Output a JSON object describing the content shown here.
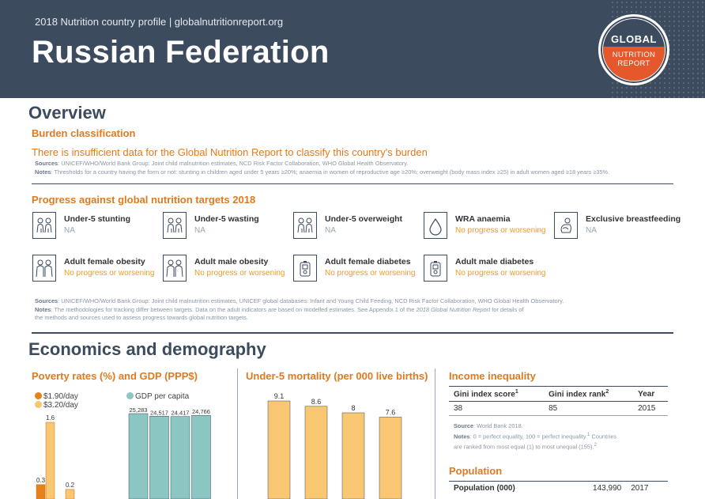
{
  "header": {
    "subtitle": "2018 Nutrition country profile  |  globalnutritionreport.org",
    "title": "Russian Federation",
    "logo": {
      "top": "GLOBAL",
      "line1": "NUTRITION",
      "line2": "REPORT"
    }
  },
  "overview": {
    "heading": "Overview",
    "burden_heading": "Burden classification",
    "burden_text": "There is insufficient data for the Global Nutrition Report to classify this country's burden",
    "burden_sources_label": "Sources",
    "burden_sources": ": UNICEF/WHO/World Bank Group: Joint child malnutrition estimates, NCD Risk Factor Collaboration, WHO Global Health Observatory.",
    "burden_notes_label": "Notes",
    "burden_notes": ": Thresholds for a country having the form or not: stunting in children aged under 5 years ≥20%; anaemia in women of reproductive age ≥20%; overweight (body mass index ≥25) in adult women aged ≥18 years ≥35%.",
    "progress_heading": "Progress against global nutrition targets 2018",
    "targets": [
      {
        "name": "Under-5 stunting",
        "status": "NA",
        "icon": "children-icon",
        "state": "na"
      },
      {
        "name": "Under-5 wasting",
        "status": "NA",
        "icon": "children-icon",
        "state": "na"
      },
      {
        "name": "Under-5 overweight",
        "status": "NA",
        "icon": "children-icon",
        "state": "na"
      },
      {
        "name": "WRA anaemia",
        "status": "No progress or worsening",
        "icon": "blood-drop-icon",
        "state": "bad"
      },
      {
        "name": "Exclusive breastfeeding",
        "status": "NA",
        "icon": "breastfeeding-icon",
        "state": "na"
      },
      {
        "name": "Adult female obesity",
        "status": "No progress or worsening",
        "icon": "adults-icon",
        "state": "bad"
      },
      {
        "name": "Adult male obesity",
        "status": "No progress or worsening",
        "icon": "adults-icon",
        "state": "bad"
      },
      {
        "name": "Adult female diabetes",
        "status": "No progress or worsening",
        "icon": "glucose-meter-icon",
        "state": "bad"
      },
      {
        "name": "Adult male diabetes",
        "status": "No progress or worsening",
        "icon": "glucose-meter-icon",
        "state": "bad"
      }
    ],
    "progress_sources_label": "Sources",
    "progress_sources": ": UNICEF/WHO/World Bank Group: Joint child malnutrition estimates, UNICEF global databases: Infant and Young Child Feeding, NCD Risk Factor Collaboration, WHO Global Health Observatory.",
    "progress_notes_label": "Notes",
    "progress_notes_1": ": The methodologies for tracking differ between targets. Data on the adult indicators are based on modelled estimates. See Appendix 1 of the ",
    "progress_notes_report": "2018 Global Nutrition Report",
    "progress_notes_2": " for details of",
    "progress_notes_3": "the methods and sources used to assess progress towards global nutrition targets."
  },
  "economics": {
    "heading": "Economics and demography",
    "poverty_heading": "Poverty rates (%) and GDP (PPP$)",
    "mortality_heading": "Under-5 mortality (per 000 live births)",
    "inequality_heading": "Income inequality",
    "gini_headers": [
      "Gini index score",
      "Gini index rank",
      "Year"
    ],
    "gini_sups": [
      "1",
      "2",
      ""
    ],
    "gini_values": [
      "38",
      "85",
      "2015"
    ],
    "gini_source_label": "Source",
    "gini_source": ": World Bank 2018.",
    "gini_notes_label": "Notes",
    "gini_notes_1": ": 0 = perfect equality, 100 = perfect inequality.",
    "gini_notes_sup1": "1",
    "gini_notes_1b": " Countries",
    "gini_notes_2": "are ranked from most equal (1) to most unequal (155).",
    "gini_notes_sup2": "2",
    "population_heading": "Population",
    "population_label": "Population (000)",
    "population_value": "143,990",
    "population_year": "2017"
  },
  "chart_data": [
    {
      "type": "bar",
      "title": "Poverty rates (%) and GDP (PPP$)",
      "legend": [
        "$1.90/day",
        "$3.20/day"
      ],
      "colors": {
        "$1.90/day": "#e5821c",
        "$3.20/day": "#f9c672"
      },
      "series": [
        {
          "name": "$1.90/day",
          "values": [
            0.3,
            0.2
          ]
        },
        {
          "name": "$3.20/day",
          "values": [
            1.6,
            0.2
          ]
        }
      ],
      "data_labels": [
        "0.3",
        "1.6",
        "0.2"
      ]
    },
    {
      "type": "bar",
      "title": "GDP per capita",
      "legend": [
        "GDP per capita"
      ],
      "color": "#8cc6c3",
      "values": [
        25283,
        24517,
        24417,
        24766
      ],
      "data_labels": [
        "25,283",
        "24,517",
        "24,417",
        "24,766"
      ]
    },
    {
      "type": "bar",
      "title": "Under-5 mortality (per 000 live births)",
      "color": "#f9c672",
      "values": [
        9.1,
        8.6,
        8,
        7.6
      ],
      "data_labels": [
        "9.1",
        "8.6",
        "8",
        "7.6"
      ]
    }
  ]
}
